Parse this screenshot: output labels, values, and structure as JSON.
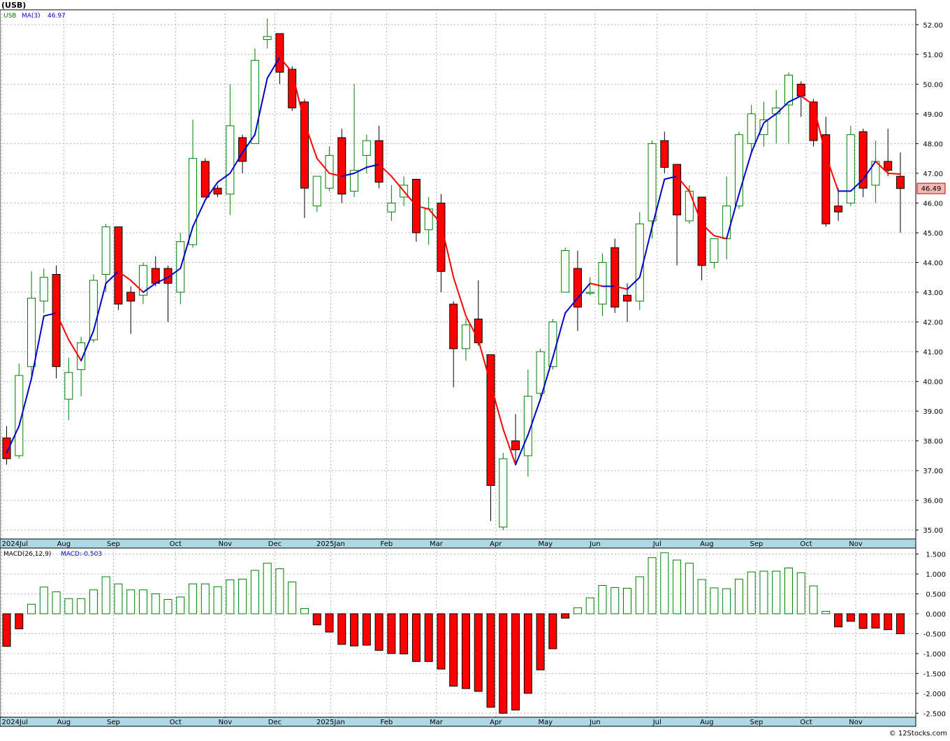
{
  "title": "(USB)",
  "price_legend": {
    "symbol": "USB",
    "ma_label": "MA(3)",
    "ma_value": "46.97"
  },
  "last_price_label": "46.49",
  "macd_legend": {
    "label": "MACD(26,12,9)",
    "value_label": "MACD:-0.503"
  },
  "watermark": "© 12Stocks.com",
  "x_axis_labels": [
    "2024Jul",
    "Aug",
    "Sep",
    "Oct",
    "Nov",
    "Dec",
    "2025Jan",
    "Feb",
    "Mar",
    "Apr",
    "May",
    "Jun",
    "Jul",
    "Aug",
    "Sep",
    "Oct",
    "Nov"
  ],
  "colors": {
    "up": "#008000",
    "down": "#ff0000",
    "ma_up": "#0000cc",
    "ma_down": "#ff0000",
    "grid": "#b0b0b0",
    "axis_band": "#add8e6",
    "last_price_bg": "#f4b6b6"
  },
  "chart_data": [
    {
      "type": "candlestick",
      "title": "(USB)",
      "interval": "weekly",
      "series": [
        {
          "name": "USB",
          "fields": [
            "open",
            "high",
            "low",
            "close"
          ],
          "values": [
            [
              38.1,
              38.5,
              37.2,
              37.4
            ],
            [
              37.5,
              40.6,
              37.4,
              40.2
            ],
            [
              40.5,
              43.7,
              40.2,
              42.8
            ],
            [
              42.7,
              43.8,
              42.3,
              43.5
            ],
            [
              43.6,
              43.9,
              40.1,
              40.5
            ],
            [
              39.4,
              40.8,
              38.7,
              40.3
            ],
            [
              40.4,
              41.5,
              39.5,
              41.3
            ],
            [
              41.4,
              43.6,
              41.3,
              43.4
            ],
            [
              43.6,
              45.3,
              43.0,
              45.2
            ],
            [
              45.2,
              45.2,
              42.4,
              42.6
            ],
            [
              43.0,
              43.2,
              41.6,
              42.7
            ],
            [
              42.9,
              44.0,
              42.6,
              43.9
            ],
            [
              43.8,
              44.2,
              43.2,
              43.3
            ],
            [
              43.8,
              43.9,
              42.0,
              43.3
            ],
            [
              43.0,
              45.0,
              42.6,
              44.7
            ],
            [
              44.6,
              48.8,
              44.5,
              47.5
            ],
            [
              47.4,
              47.5,
              46.2,
              46.2
            ],
            [
              46.5,
              46.6,
              46.2,
              46.3
            ],
            [
              46.3,
              50.0,
              45.6,
              48.6
            ],
            [
              48.2,
              48.3,
              47.0,
              47.4
            ],
            [
              48.0,
              51.2,
              48.0,
              50.8
            ],
            [
              51.5,
              52.2,
              51.2,
              51.6
            ],
            [
              51.7,
              51.7,
              50.0,
              50.4
            ],
            [
              50.5,
              50.6,
              49.1,
              49.2
            ],
            [
              49.4,
              49.5,
              45.5,
              46.5
            ],
            [
              45.9,
              46.8,
              45.7,
              46.9
            ],
            [
              46.5,
              47.9,
              46.4,
              47.6
            ],
            [
              48.2,
              48.5,
              46.0,
              46.3
            ],
            [
              46.4,
              50.0,
              46.2,
              47.1
            ],
            [
              47.6,
              48.3,
              47.0,
              48.1
            ],
            [
              48.1,
              48.6,
              46.5,
              46.7
            ],
            [
              45.7,
              46.6,
              45.4,
              46.0
            ],
            [
              46.2,
              46.9,
              45.9,
              46.6
            ],
            [
              46.8,
              46.8,
              44.7,
              45.0
            ],
            [
              45.1,
              46.2,
              44.6,
              45.8
            ],
            [
              46.0,
              46.3,
              43.0,
              43.7
            ],
            [
              42.6,
              42.7,
              39.8,
              41.1
            ],
            [
              41.1,
              42.1,
              40.7,
              41.9
            ],
            [
              42.1,
              43.4,
              41.2,
              41.3
            ],
            [
              40.9,
              40.9,
              35.3,
              36.5
            ],
            [
              35.1,
              37.6,
              35.0,
              37.4
            ],
            [
              38.0,
              38.9,
              37.2,
              37.7
            ],
            [
              37.5,
              40.4,
              36.8,
              39.5
            ],
            [
              39.6,
              41.1,
              39.5,
              41.0
            ],
            [
              40.5,
              42.1,
              40.4,
              42.0
            ],
            [
              43.0,
              44.5,
              43.2,
              44.4
            ],
            [
              43.8,
              44.4,
              41.7,
              42.5
            ],
            [
              43.0,
              43.5,
              42.9,
              43.0
            ],
            [
              42.6,
              44.3,
              42.2,
              44.0
            ],
            [
              44.5,
              44.8,
              42.3,
              42.5
            ],
            [
              42.9,
              43.3,
              42.0,
              42.7
            ],
            [
              42.7,
              45.7,
              42.4,
              45.3
            ],
            [
              45.4,
              48.1,
              44.8,
              48.0
            ],
            [
              48.1,
              48.4,
              47.0,
              47.2
            ],
            [
              47.3,
              47.3,
              43.9,
              45.6
            ],
            [
              45.4,
              46.6,
              45.3,
              46.4
            ],
            [
              46.2,
              46.2,
              43.4,
              43.9
            ],
            [
              44.0,
              44.8,
              43.8,
              44.8
            ],
            [
              44.8,
              46.9,
              44.1,
              45.9
            ],
            [
              45.9,
              48.4,
              45.8,
              48.3
            ],
            [
              48.0,
              49.3,
              47.7,
              49.0
            ],
            [
              48.3,
              49.4,
              47.9,
              48.8
            ],
            [
              49.0,
              49.8,
              48.0,
              49.2
            ],
            [
              49.3,
              50.4,
              48.0,
              50.3
            ],
            [
              50.0,
              50.1,
              48.9,
              49.6
            ],
            [
              49.4,
              49.5,
              47.9,
              48.1
            ],
            [
              48.3,
              48.9,
              45.2,
              45.3
            ],
            [
              45.9,
              46.5,
              45.4,
              45.7
            ],
            [
              46.0,
              48.6,
              45.9,
              48.3
            ],
            [
              48.4,
              48.5,
              46.2,
              46.5
            ],
            [
              46.6,
              48.1,
              46.0,
              47.4
            ],
            [
              47.4,
              48.5,
              46.9,
              47.1
            ],
            [
              46.9,
              47.7,
              45.0,
              46.49
            ]
          ]
        },
        {
          "name": "MA(3)",
          "values": [
            37.6,
            38.5,
            40.1,
            42.2,
            42.3,
            41.4,
            40.7,
            41.7,
            43.3,
            43.7,
            43.4,
            43.0,
            43.3,
            43.5,
            43.8,
            45.2,
            46.1,
            46.7,
            47.0,
            47.7,
            48.3,
            50.2,
            50.9,
            50.4,
            48.7,
            47.5,
            47.0,
            46.9,
            47.0,
            47.2,
            47.3,
            46.9,
            46.4,
            45.9,
            45.8,
            45.3,
            43.5,
            42.2,
            41.4,
            39.9,
            38.4,
            37.2,
            38.2,
            39.4,
            40.8,
            42.3,
            42.8,
            43.3,
            43.2,
            43.2,
            43.1,
            43.5,
            45.2,
            46.8,
            46.9,
            46.4,
            45.3,
            44.9,
            44.8,
            46.3,
            47.7,
            48.7,
            49.0,
            49.4,
            49.6,
            49.3,
            47.6,
            46.4,
            46.4,
            46.8,
            47.4,
            47.0,
            46.97
          ]
        }
      ],
      "ylim": [
        34.7,
        52.5
      ],
      "y_ticks": [
        "35.00",
        "36.00",
        "37.00",
        "38.00",
        "39.00",
        "40.00",
        "41.00",
        "42.00",
        "43.00",
        "44.00",
        "45.00",
        "46.00",
        "47.00",
        "48.00",
        "49.00",
        "50.00",
        "51.00",
        "52.00"
      ],
      "grid": true
    },
    {
      "type": "bar",
      "title": "MACD(26,12,9)",
      "series": [
        {
          "name": "MACD",
          "values": [
            -0.82,
            -0.38,
            0.24,
            0.67,
            0.55,
            0.38,
            0.38,
            0.6,
            0.93,
            0.75,
            0.6,
            0.6,
            0.5,
            0.36,
            0.42,
            0.75,
            0.75,
            0.68,
            0.85,
            0.87,
            1.09,
            1.27,
            1.13,
            0.8,
            0.13,
            -0.28,
            -0.46,
            -0.77,
            -0.81,
            -0.79,
            -0.92,
            -1.0,
            -1.01,
            -1.2,
            -1.2,
            -1.39,
            -1.82,
            -1.88,
            -1.95,
            -2.35,
            -2.5,
            -2.42,
            -2.0,
            -1.41,
            -0.88,
            -0.11,
            0.15,
            0.4,
            0.71,
            0.66,
            0.64,
            0.93,
            1.41,
            1.53,
            1.35,
            1.27,
            0.86,
            0.65,
            0.63,
            0.87,
            1.05,
            1.07,
            1.07,
            1.15,
            1.03,
            0.7,
            0.06,
            -0.33,
            -0.19,
            -0.37,
            -0.36,
            -0.4,
            -0.503
          ]
        }
      ],
      "ylim": [
        -2.6,
        1.65
      ],
      "y_ticks": [
        "1.500",
        "1.000",
        "0.500",
        "0.000",
        "-0.500",
        "-1.000",
        "-1.500",
        "-2.000",
        "-2.500"
      ],
      "grid": true
    }
  ]
}
